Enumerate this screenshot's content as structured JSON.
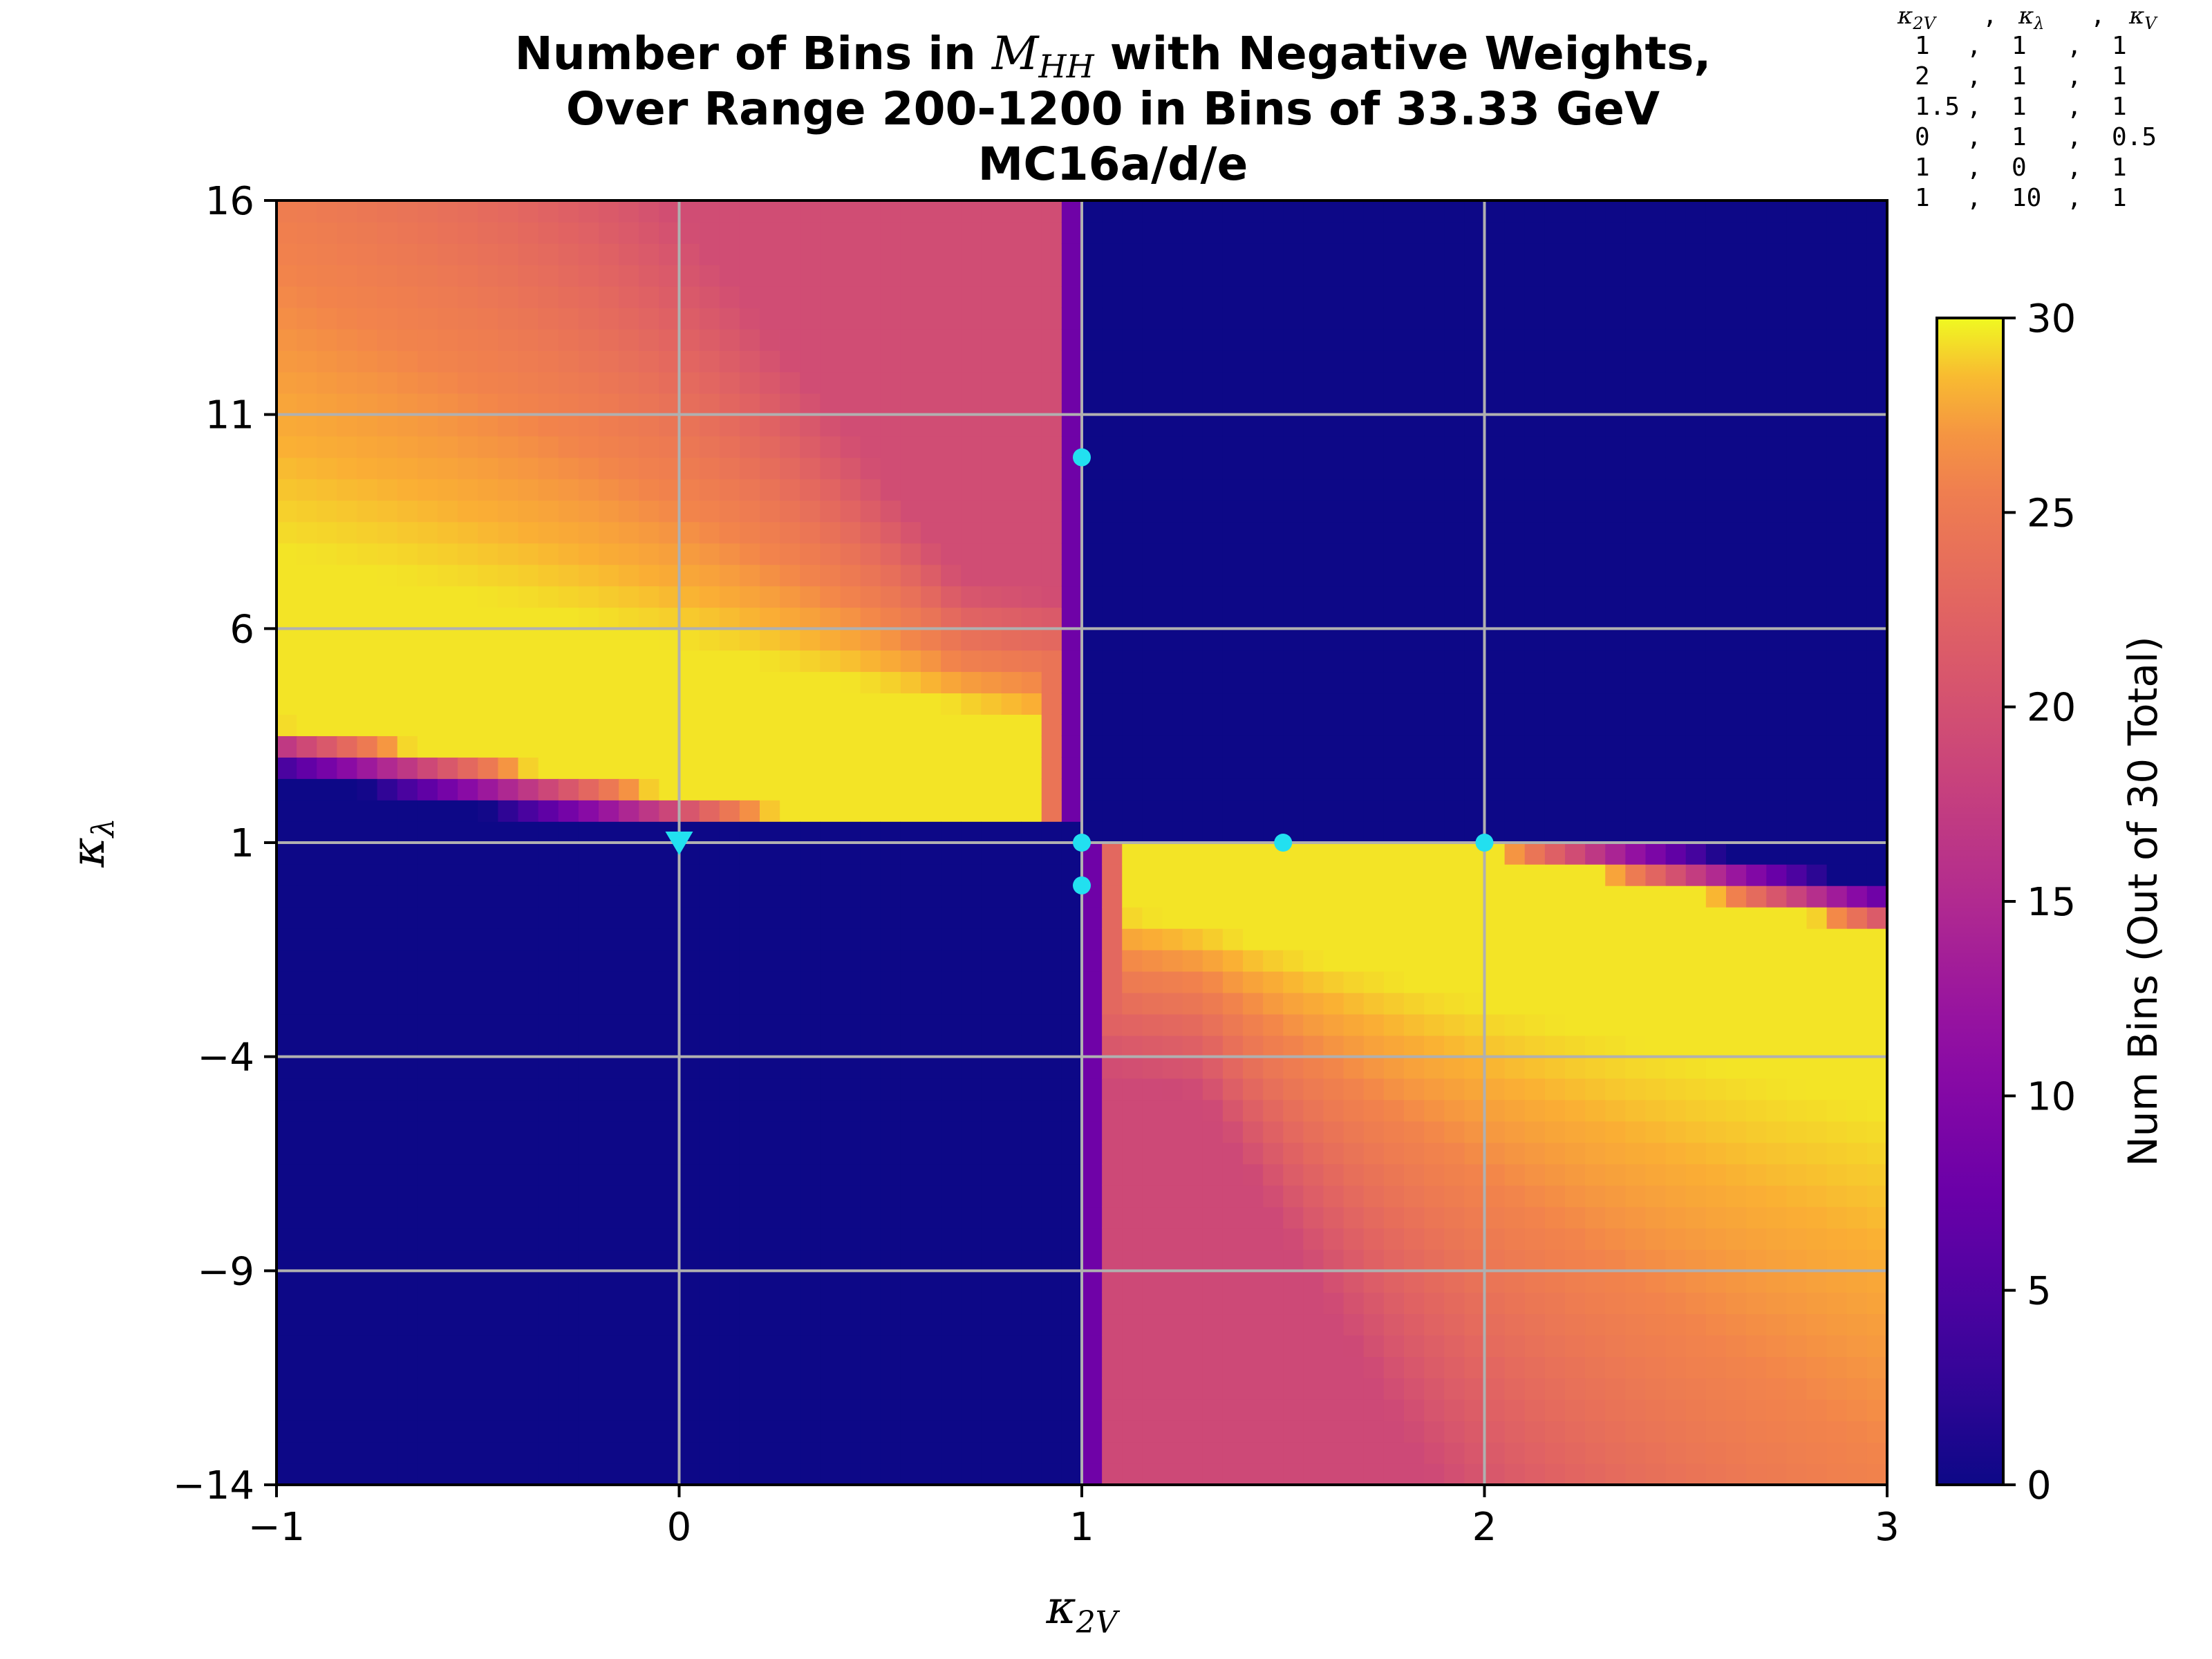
{
  "chart_data": {
    "type": "heatmap",
    "title_lines": [
      "Number of Bins in M_HH with Negative Weights,",
      "Over Range 200-1200 in Bins of 33.33 GeV",
      "MC16a/d/e"
    ],
    "title_parts": {
      "pre": "Number of Bins in ",
      "var": "M",
      "var_sub": "HH",
      "post": " with Negative Weights,"
    },
    "xlabel": {
      "symbol": "κ",
      "sub": "2V"
    },
    "ylabel": {
      "symbol": "κ",
      "sub": "λ"
    },
    "xlim": [
      -1,
      3
    ],
    "ylim": [
      -14,
      16
    ],
    "xticks": [
      -1,
      0,
      1,
      2,
      3
    ],
    "xtick_labels": [
      "−1",
      "0",
      "1",
      "2",
      "3"
    ],
    "yticks": [
      -14,
      -9,
      -4,
      1,
      6,
      11,
      16
    ],
    "ytick_labels": [
      "−14",
      "−9",
      "−4",
      "1",
      "6",
      "11",
      "16"
    ],
    "grid": true,
    "grid_color": "#b0b0b0",
    "colormap": "plasma",
    "colorbar": {
      "label": "Num Bins (Out of 30 Total)",
      "min": 0,
      "max": 30,
      "ticks": [
        0,
        5,
        10,
        15,
        20,
        25,
        30
      ],
      "tick_labels": [
        "0",
        "5",
        "10",
        "15",
        "20",
        "25",
        "30"
      ]
    },
    "heatmap_model": {
      "nx": 80,
      "ny": 60,
      "max_value": 30,
      "notes_free": true
    },
    "points": [
      {
        "k2v": 1,
        "kl": 1,
        "kv": 1,
        "marker": "circle"
      },
      {
        "k2v": 2,
        "kl": 1,
        "kv": 1,
        "marker": "circle"
      },
      {
        "k2v": 1.5,
        "kl": 1,
        "kv": 1,
        "marker": "circle"
      },
      {
        "k2v": 0,
        "kl": 1,
        "kv": 0.5,
        "marker": "triangle"
      },
      {
        "k2v": 1,
        "kl": 0,
        "kv": 1,
        "marker": "circle"
      },
      {
        "k2v": 1,
        "kl": 10,
        "kv": 1,
        "marker": "circle"
      }
    ],
    "point_color": "#22e0f0",
    "legend": {
      "header": [
        "κ2V",
        "κλ",
        "κV"
      ],
      "header_parts": [
        {
          "s": "κ",
          "sub": "2V"
        },
        {
          "s": "κ",
          "sub": "λ"
        },
        {
          "s": "κ",
          "sub": "V"
        }
      ],
      "sep": ",",
      "rows": [
        [
          "1",
          "1",
          "1"
        ],
        [
          "2",
          "1",
          "1"
        ],
        [
          "1.5",
          "1",
          "1"
        ],
        [
          "0",
          "1",
          "0.5"
        ],
        [
          "1",
          "0",
          "1"
        ],
        [
          "1",
          "10",
          "1"
        ]
      ],
      "placement": "top-right"
    }
  }
}
